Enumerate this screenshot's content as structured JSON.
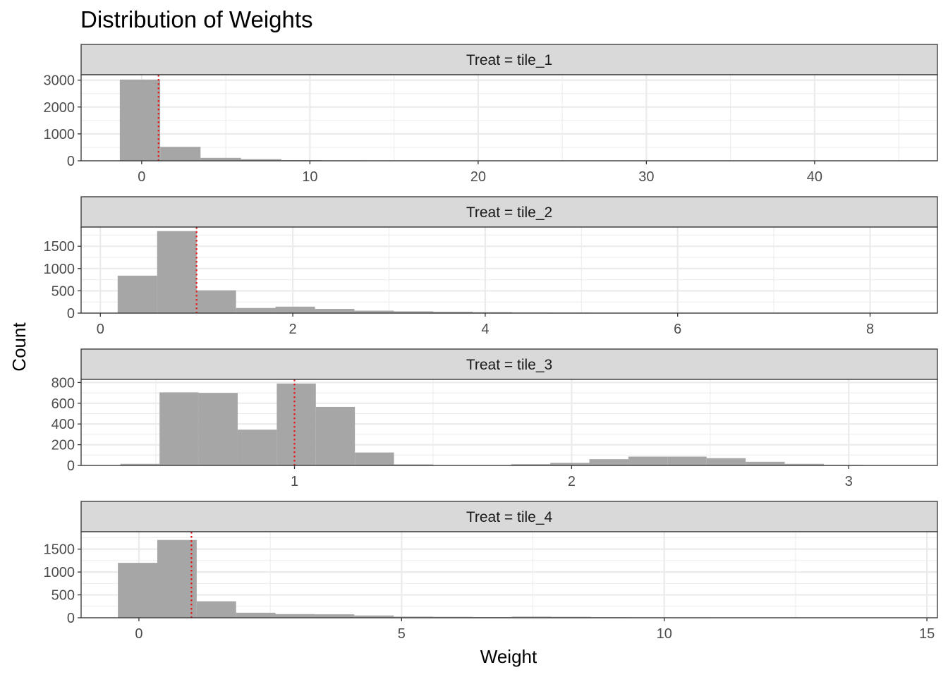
{
  "chart_data": {
    "type": "bar",
    "title": "Distribution of Weights",
    "xlabel": "Weight",
    "ylabel": "Count",
    "reference_line": {
      "x": 1,
      "color": "#e41a1c",
      "style": "dotted"
    },
    "bar_color": "#a6a6a6",
    "grid": true,
    "panels": [
      {
        "strip": "Treat = tile_1",
        "xlim": [
          -3.6,
          47.3
        ],
        "ylim": [
          0,
          3200
        ],
        "x_breaks": [
          0,
          10,
          20,
          30,
          40
        ],
        "x_labels": [
          "0",
          "10",
          "20",
          "30",
          "40"
        ],
        "y_breaks": [
          0,
          1000,
          2000,
          3000
        ],
        "y_labels": [
          "0",
          "1000",
          "2000",
          "3000"
        ],
        "bin_width": 2.4,
        "bin_starts": [
          -1.3,
          1.1,
          3.5,
          5.9,
          8.3,
          10.7,
          13.1,
          15.5,
          17.9,
          20.3,
          22.7,
          25.1,
          27.5,
          29.9,
          32.3,
          34.7,
          37.1,
          39.5,
          41.9,
          44.3
        ],
        "counts": [
          3020,
          520,
          110,
          60,
          25,
          15,
          10,
          8,
          6,
          5,
          4,
          3,
          3,
          2,
          2,
          2,
          1,
          1,
          1,
          1
        ]
      },
      {
        "strip": "Treat = tile_2",
        "xlim": [
          -0.2,
          8.7
        ],
        "ylim": [
          0,
          1930
        ],
        "x_breaks": [
          0,
          2,
          4,
          6,
          8
        ],
        "x_labels": [
          "0",
          "2",
          "4",
          "6",
          "8"
        ],
        "y_breaks": [
          0,
          500,
          1000,
          1500
        ],
        "y_labels": [
          "0",
          "500",
          "1000",
          "1500"
        ],
        "bin_width": 0.41,
        "bin_starts": [
          0.18,
          0.59,
          1.0,
          1.41,
          1.82,
          2.23,
          2.64,
          3.05,
          3.46,
          3.87,
          4.28,
          4.69,
          5.1,
          5.51,
          5.92,
          6.33,
          6.74,
          7.15,
          7.56,
          7.97
        ],
        "counts": [
          840,
          1840,
          510,
          115,
          145,
          95,
          55,
          40,
          30,
          20,
          12,
          10,
          7,
          6,
          5,
          5,
          4,
          4,
          3,
          3
        ]
      },
      {
        "strip": "Treat = tile_3",
        "xlim": [
          0.23,
          3.32
        ],
        "ylim": [
          0,
          830
        ],
        "x_breaks": [
          1,
          2,
          3
        ],
        "x_labels": [
          "1",
          "2",
          "3"
        ],
        "y_breaks": [
          0,
          200,
          400,
          600,
          800
        ],
        "y_labels": [
          "0",
          "200",
          "400",
          "600",
          "800"
        ],
        "bin_width": 0.141,
        "bin_starts": [
          0.372,
          0.513,
          0.654,
          0.795,
          0.936,
          1.077,
          1.218,
          1.359,
          1.5,
          1.641,
          1.782,
          1.923,
          2.064,
          2.205,
          2.346,
          2.487,
          2.628,
          2.769,
          2.91,
          3.051
        ],
        "counts": [
          15,
          705,
          700,
          345,
          790,
          565,
          125,
          10,
          3,
          3,
          12,
          25,
          60,
          85,
          85,
          70,
          35,
          15,
          5,
          2
        ]
      },
      {
        "strip": "Treat = tile_4",
        "xlim": [
          -1.1,
          15.2
        ],
        "ylim": [
          0,
          1880
        ],
        "x_breaks": [
          0,
          5,
          10,
          15
        ],
        "x_labels": [
          "0",
          "5",
          "10",
          "15"
        ],
        "y_breaks": [
          0,
          500,
          1000,
          1500
        ],
        "y_labels": [
          "0",
          "500",
          "1000",
          "1500"
        ],
        "bin_width": 0.75,
        "bin_starts": [
          -0.4,
          0.35,
          1.1,
          1.85,
          2.6,
          3.35,
          4.1,
          4.85,
          5.6,
          6.35,
          7.1,
          7.85,
          8.6,
          9.35,
          10.1,
          10.85,
          11.6,
          12.35,
          13.1,
          13.85
        ],
        "counts": [
          1200,
          1700,
          360,
          110,
          80,
          75,
          50,
          25,
          20,
          15,
          25,
          20,
          12,
          10,
          8,
          6,
          5,
          4,
          3,
          3
        ]
      }
    ]
  }
}
